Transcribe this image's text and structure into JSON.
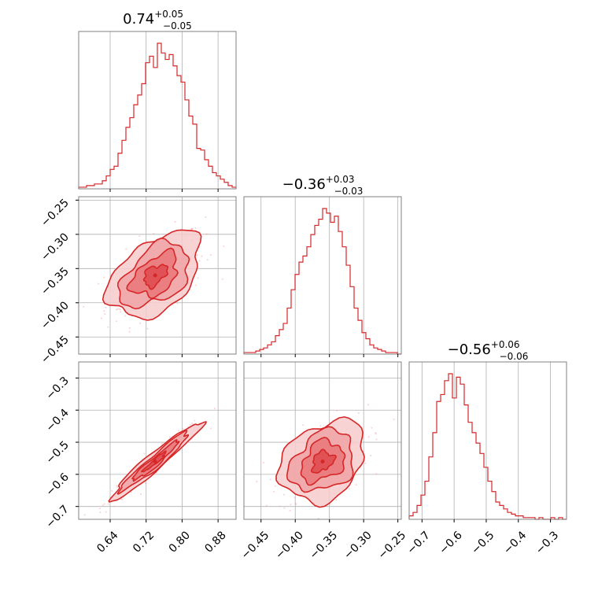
{
  "chart_data": {
    "type": "corner",
    "color": "#d62728",
    "fill_color": "#f2a6a8",
    "grid": true,
    "params": [
      {
        "median": "0.74",
        "plus": "+0.05",
        "minus": "−0.05",
        "range": [
          0.57,
          0.92
        ],
        "ticks": [
          0.64,
          0.72,
          0.8,
          0.88
        ],
        "tick_labels": [
          "0.64",
          "0.72",
          "0.80",
          "0.88"
        ]
      },
      {
        "median": "−0.36",
        "plus": "+0.03",
        "minus": "−0.03",
        "range": [
          -0.475,
          -0.245
        ],
        "ticks": [
          -0.45,
          -0.4,
          -0.35,
          -0.3,
          -0.25
        ],
        "tick_labels": [
          "−0.45",
          "−0.40",
          "−0.35",
          "−0.30",
          "−0.25"
        ]
      },
      {
        "median": "−0.56",
        "plus": "+0.06",
        "minus": "−0.06",
        "range": [
          -0.74,
          -0.25
        ],
        "ticks": [
          -0.7,
          -0.6,
          -0.5,
          -0.4,
          -0.3
        ],
        "tick_labels": [
          "−0.7",
          "−0.6",
          "−0.5",
          "−0.4",
          "−0.3"
        ]
      }
    ],
    "hist": [
      {
        "edges_start": 0.57,
        "bin_width": 0.00875,
        "counts": [
          1,
          1,
          2,
          2,
          3,
          3,
          5,
          8,
          12,
          14,
          22,
          30,
          38,
          44,
          52,
          58,
          65,
          78,
          82,
          75,
          90,
          84,
          80,
          83,
          76,
          70,
          66,
          55,
          45,
          40,
          25,
          24,
          18,
          14,
          10,
          8,
          6,
          4,
          2,
          1
        ]
      },
      {
        "edges_start": -0.475,
        "bin_width": 0.00575,
        "counts": [
          1,
          1,
          1,
          2,
          3,
          4,
          6,
          8,
          12,
          16,
          20,
          30,
          42,
          52,
          60,
          64,
          70,
          78,
          84,
          88,
          95,
          92,
          86,
          90,
          80,
          70,
          58,
          44,
          30,
          22,
          14,
          10,
          6,
          4,
          3,
          2,
          1,
          1,
          1,
          0
        ]
      },
      {
        "edges_start": -0.74,
        "bin_width": 0.01225,
        "counts": [
          2,
          4,
          8,
          14,
          22,
          36,
          50,
          68,
          72,
          80,
          84,
          70,
          82,
          78,
          66,
          56,
          50,
          44,
          38,
          30,
          22,
          16,
          10,
          8,
          6,
          4,
          3,
          2,
          2,
          1,
          1,
          1,
          0,
          1,
          0,
          0,
          1,
          0,
          1,
          0
        ]
      }
    ],
    "pairs": [
      {
        "x_param": 0,
        "y_param": 1,
        "cx": 0.74,
        "cy": -0.36,
        "sx": 0.05,
        "sy": 0.03,
        "rho": 0.55
      },
      {
        "x_param": 0,
        "y_param": 2,
        "cx": 0.74,
        "cy": -0.56,
        "sx": 0.05,
        "sy": 0.06,
        "rho": 0.97
      },
      {
        "x_param": 1,
        "y_param": 2,
        "cx": -0.36,
        "cy": -0.56,
        "sx": 0.03,
        "sy": 0.06,
        "rho": 0.4
      }
    ]
  }
}
